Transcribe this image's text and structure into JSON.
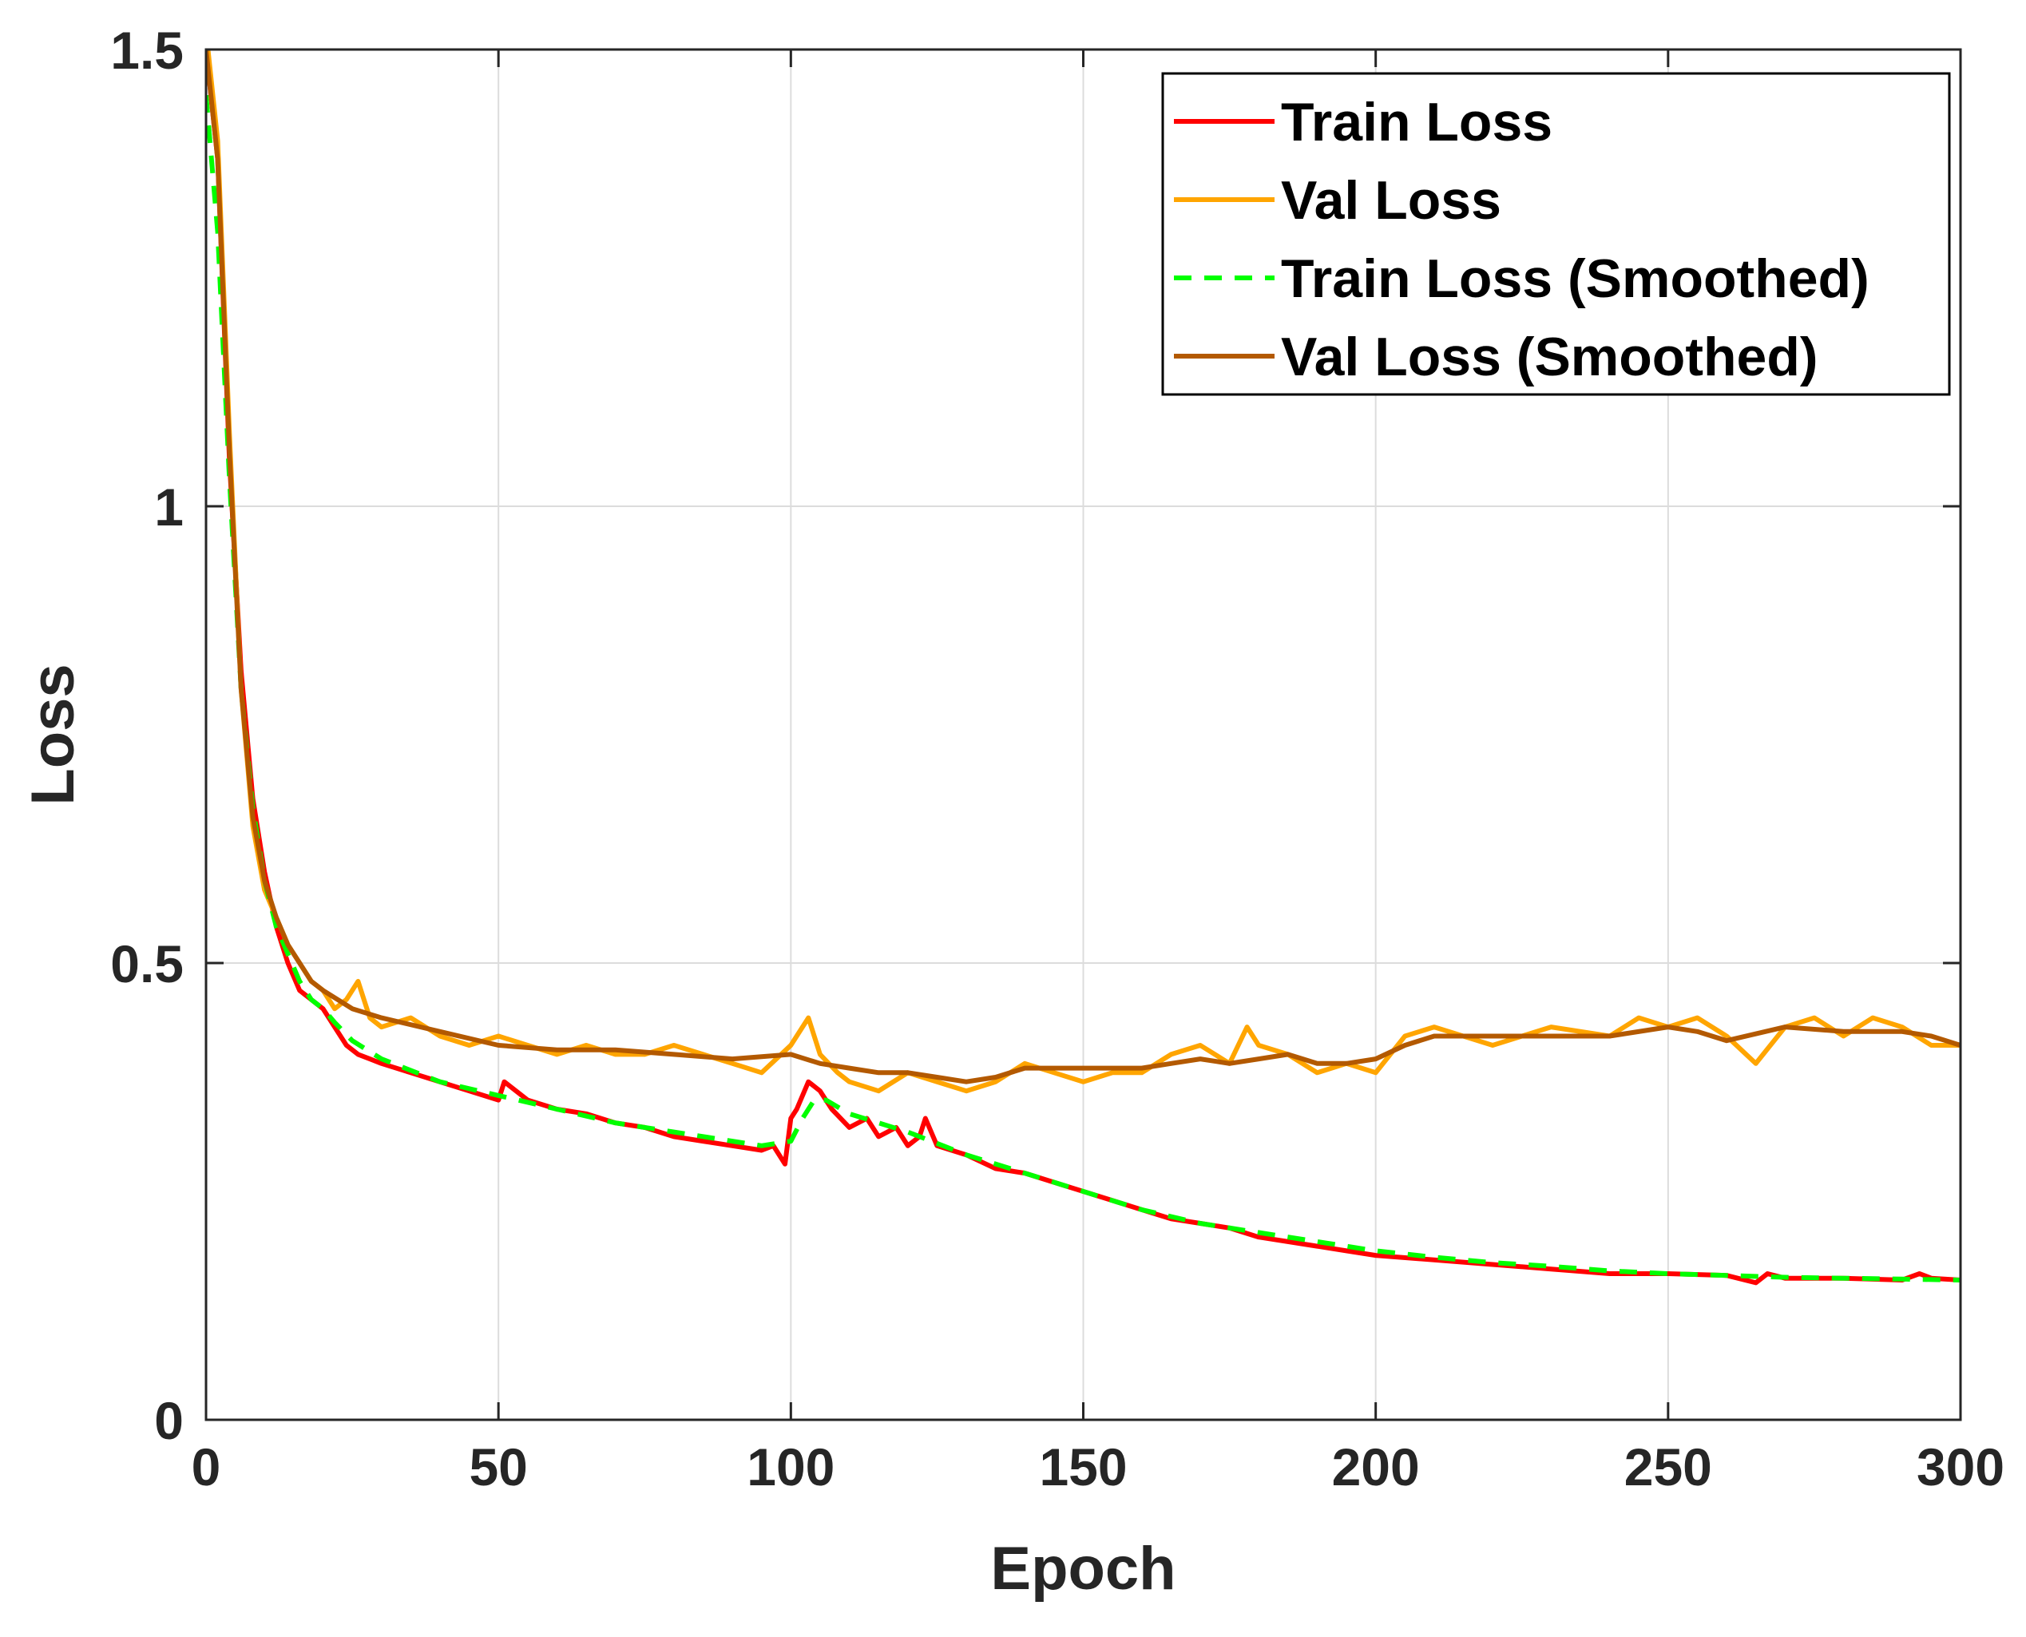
{
  "chart_data": {
    "type": "line",
    "title": "",
    "xlabel": "Epoch",
    "ylabel": "Loss",
    "xlim": [
      0,
      300
    ],
    "ylim": [
      0,
      1.5
    ],
    "xticks": [
      0,
      50,
      100,
      150,
      200,
      250,
      300
    ],
    "yticks": [
      0,
      0.5,
      1,
      1.5
    ],
    "xtick_labels": [
      "0",
      "50",
      "100",
      "150",
      "200",
      "250",
      "300"
    ],
    "ytick_labels": [
      "0",
      "0.5",
      "1",
      "1.5"
    ],
    "grid": true,
    "legend_position": "top-right",
    "series": [
      {
        "name": "Train Loss",
        "color": "#ff0000",
        "style": "solid",
        "x": [
          0,
          2,
          4,
          6,
          8,
          10,
          12,
          14,
          16,
          18,
          20,
          22,
          24,
          26,
          28,
          30,
          35,
          40,
          45,
          50,
          51,
          55,
          60,
          65,
          70,
          75,
          80,
          85,
          90,
          95,
          97,
          99,
          100,
          101,
          103,
          105,
          107,
          110,
          113,
          115,
          118,
          120,
          122,
          123,
          125,
          130,
          135,
          140,
          145,
          150,
          155,
          160,
          165,
          170,
          175,
          180,
          185,
          190,
          195,
          200,
          210,
          220,
          230,
          240,
          250,
          260,
          265,
          267,
          270,
          280,
          290,
          293,
          295,
          300
        ],
        "y": [
          1.5,
          1.38,
          1.05,
          0.82,
          0.68,
          0.6,
          0.54,
          0.5,
          0.47,
          0.46,
          0.45,
          0.43,
          0.41,
          0.4,
          0.395,
          0.39,
          0.38,
          0.37,
          0.36,
          0.35,
          0.37,
          0.35,
          0.34,
          0.335,
          0.325,
          0.32,
          0.31,
          0.305,
          0.3,
          0.295,
          0.3,
          0.28,
          0.33,
          0.34,
          0.37,
          0.36,
          0.34,
          0.32,
          0.33,
          0.31,
          0.32,
          0.3,
          0.31,
          0.33,
          0.3,
          0.29,
          0.275,
          0.27,
          0.26,
          0.25,
          0.24,
          0.23,
          0.22,
          0.215,
          0.21,
          0.2,
          0.195,
          0.19,
          0.185,
          0.18,
          0.175,
          0.17,
          0.165,
          0.16,
          0.16,
          0.158,
          0.15,
          0.16,
          0.155,
          0.155,
          0.153,
          0.16,
          0.155,
          0.153
        ]
      },
      {
        "name": "Val Loss",
        "color": "#ffa500",
        "style": "solid",
        "x": [
          0,
          2,
          4,
          6,
          8,
          10,
          12,
          14,
          16,
          18,
          20,
          22,
          24,
          26,
          28,
          30,
          35,
          40,
          45,
          50,
          55,
          60,
          65,
          70,
          75,
          80,
          85,
          90,
          95,
          100,
          103,
          105,
          108,
          110,
          115,
          120,
          125,
          130,
          135,
          140,
          145,
          150,
          155,
          160,
          165,
          170,
          175,
          178,
          180,
          185,
          190,
          195,
          200,
          205,
          210,
          220,
          230,
          240,
          245,
          250,
          255,
          260,
          265,
          270,
          275,
          280,
          285,
          290,
          295,
          300
        ],
        "y": [
          1.52,
          1.4,
          1.08,
          0.8,
          0.65,
          0.58,
          0.55,
          0.52,
          0.5,
          0.48,
          0.47,
          0.45,
          0.46,
          0.48,
          0.44,
          0.43,
          0.44,
          0.42,
          0.41,
          0.42,
          0.41,
          0.4,
          0.41,
          0.4,
          0.4,
          0.41,
          0.4,
          0.39,
          0.38,
          0.41,
          0.44,
          0.4,
          0.38,
          0.37,
          0.36,
          0.38,
          0.37,
          0.36,
          0.37,
          0.39,
          0.38,
          0.37,
          0.38,
          0.38,
          0.4,
          0.41,
          0.39,
          0.43,
          0.41,
          0.4,
          0.38,
          0.39,
          0.38,
          0.42,
          0.43,
          0.41,
          0.43,
          0.42,
          0.44,
          0.43,
          0.44,
          0.42,
          0.39,
          0.43,
          0.44,
          0.42,
          0.44,
          0.43,
          0.41,
          0.41
        ]
      },
      {
        "name": "Train Loss (Smoothed)",
        "color": "#00ff00",
        "style": "dashed",
        "x": [
          0,
          2,
          4,
          6,
          8,
          10,
          12,
          14,
          16,
          18,
          20,
          22,
          25,
          30,
          40,
          50,
          60,
          70,
          80,
          90,
          95,
          100,
          102,
          104,
          106,
          110,
          120,
          130,
          140,
          150,
          160,
          170,
          180,
          190,
          200,
          210,
          220,
          230,
          240,
          250,
          260,
          270,
          280,
          290,
          300
        ],
        "y": [
          1.45,
          1.3,
          1.03,
          0.8,
          0.67,
          0.59,
          0.54,
          0.51,
          0.48,
          0.46,
          0.45,
          0.435,
          0.415,
          0.395,
          0.37,
          0.355,
          0.34,
          0.325,
          0.315,
          0.305,
          0.3,
          0.305,
          0.33,
          0.35,
          0.35,
          0.335,
          0.315,
          0.29,
          0.27,
          0.25,
          0.23,
          0.215,
          0.205,
          0.195,
          0.185,
          0.178,
          0.172,
          0.168,
          0.163,
          0.16,
          0.158,
          0.156,
          0.155,
          0.154,
          0.153
        ]
      },
      {
        "name": "Val Loss (Smoothed)",
        "color": "#b35900",
        "style": "solid",
        "x": [
          0,
          2,
          4,
          6,
          8,
          10,
          12,
          14,
          16,
          18,
          20,
          25,
          30,
          40,
          50,
          60,
          70,
          80,
          90,
          100,
          105,
          110,
          115,
          120,
          125,
          130,
          135,
          140,
          150,
          160,
          165,
          170,
          175,
          180,
          185,
          190,
          195,
          200,
          205,
          210,
          220,
          230,
          240,
          250,
          255,
          260,
          270,
          280,
          290,
          295,
          300
        ],
        "y": [
          1.5,
          1.38,
          1.06,
          0.8,
          0.66,
          0.59,
          0.55,
          0.52,
          0.5,
          0.48,
          0.47,
          0.45,
          0.44,
          0.425,
          0.41,
          0.405,
          0.405,
          0.4,
          0.395,
          0.4,
          0.39,
          0.385,
          0.38,
          0.38,
          0.375,
          0.37,
          0.375,
          0.385,
          0.385,
          0.385,
          0.39,
          0.395,
          0.39,
          0.395,
          0.4,
          0.39,
          0.39,
          0.395,
          0.41,
          0.42,
          0.42,
          0.42,
          0.42,
          0.43,
          0.425,
          0.415,
          0.43,
          0.425,
          0.425,
          0.42,
          0.41
        ]
      }
    ]
  }
}
